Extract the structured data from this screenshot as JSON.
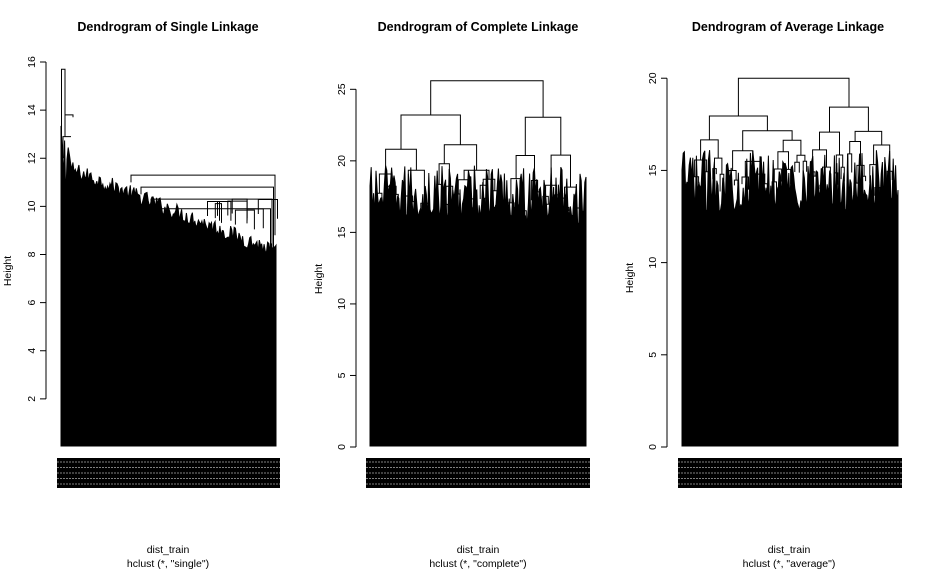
{
  "chart_data": [
    {
      "type": "dendrogram",
      "title": "Dendrogram of Single Linkage",
      "ylabel": "Height",
      "xlabel": "dist_train",
      "sublabel": "hclust (*, \"single\")",
      "yticks": [
        2,
        4,
        6,
        8,
        10,
        12,
        14,
        16
      ],
      "ylim": [
        0,
        16
      ],
      "method": "single",
      "max_height": 15.7,
      "top_merges": [
        15.7,
        13.8,
        13.7,
        12.9,
        11.3,
        10.8,
        10.3,
        9.9
      ]
    },
    {
      "type": "dendrogram",
      "title": "Dendrogram of Complete Linkage",
      "ylabel": "Height",
      "xlabel": "dist_train",
      "sublabel": "hclust (*, \"complete\")",
      "yticks": [
        0,
        5,
        10,
        15,
        20,
        25
      ],
      "ylim": [
        0,
        26
      ],
      "method": "complete",
      "max_height": 25.6,
      "top_merges": [
        25.6,
        24.8,
        24.5,
        23.5,
        22.8,
        22.2,
        21.5
      ]
    },
    {
      "type": "dendrogram",
      "title": "Dendrogram of Average Linkage",
      "ylabel": "Height",
      "xlabel": "dist_train",
      "sublabel": "hclust (*, \"average\")",
      "yticks": [
        0,
        5,
        10,
        15,
        20
      ],
      "ylim": [
        0,
        20.5
      ],
      "method": "average",
      "max_height": 20.0,
      "top_merges": [
        20.0,
        19.8,
        19.3,
        18.8,
        18.6,
        18.0,
        17.5
      ]
    }
  ]
}
